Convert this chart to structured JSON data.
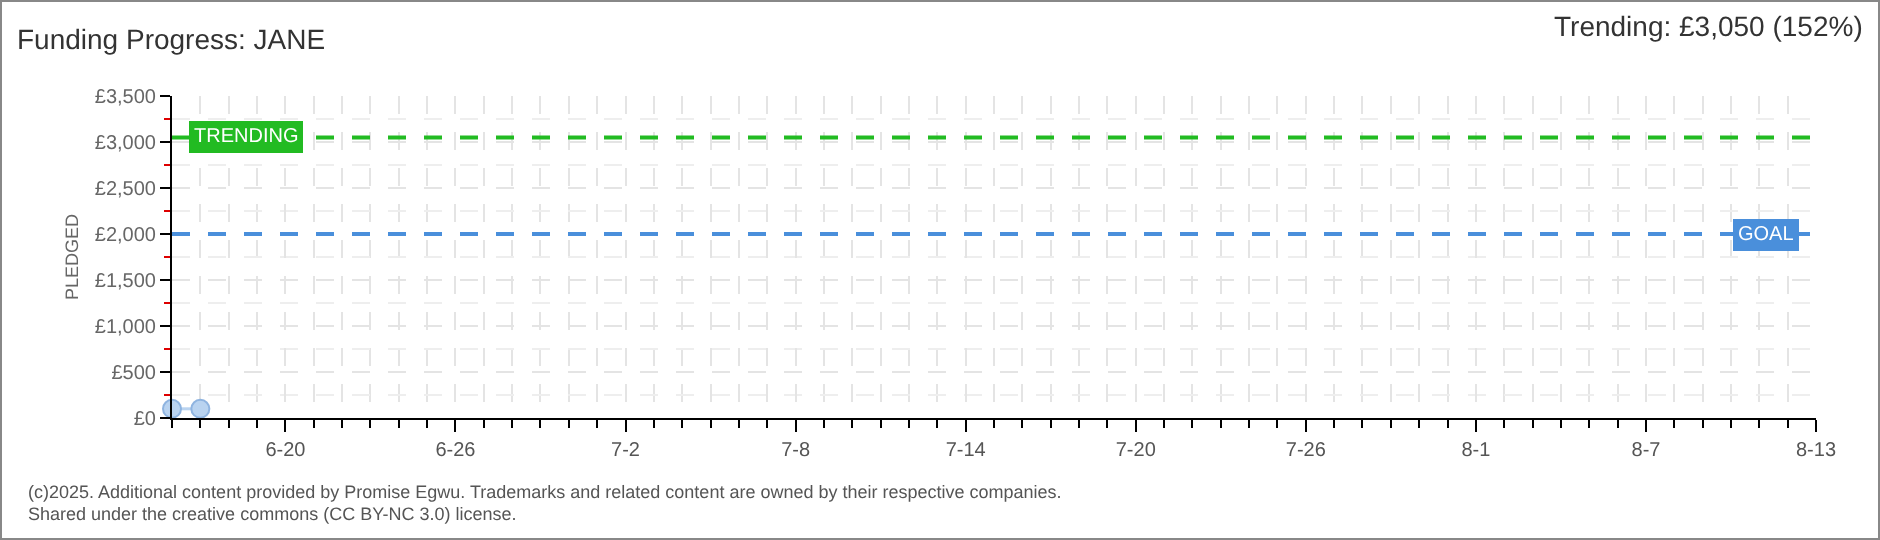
{
  "chart_data": {
    "type": "line",
    "title": "Funding Progress: JANE",
    "subtitle": "Trending: £3,050 (152%)",
    "ylabel": "PLEDGED",
    "x": [
      "--06-16",
      "--06-17"
    ],
    "series": [
      {
        "color": "#b9d3f0",
        "values": [
          100,
          100
        ]
      }
    ],
    "marker": "circle",
    "grid": true,
    "line_style": "solid",
    "xlim": [
      "--06-16",
      "--08-13"
    ],
    "xticks": [
      {
        "value": "--06-20",
        "label": "6-20"
      },
      {
        "value": "--06-26",
        "label": "6-26"
      },
      {
        "value": "--07-02",
        "label": "7-2"
      },
      {
        "value": "--07-08",
        "label": "7-8"
      },
      {
        "value": "--07-14",
        "label": "7-14"
      },
      {
        "value": "--07-20",
        "label": "7-20"
      },
      {
        "value": "--07-26",
        "label": "7-26"
      },
      {
        "value": "--08-01",
        "label": "8-1"
      },
      {
        "value": "--08-07",
        "label": "8-7"
      },
      {
        "value": "--08-13",
        "label": "8-13"
      }
    ],
    "ylim": [
      0,
      3500
    ],
    "yticks": [
      {
        "value": 0,
        "label": "£0"
      },
      {
        "value": 500,
        "label": "£500"
      },
      {
        "value": 1000,
        "label": "£1,000"
      },
      {
        "value": 1500,
        "label": "£1,500"
      },
      {
        "value": 2000,
        "label": "£2,000"
      },
      {
        "value": 2500,
        "label": "£2,500"
      },
      {
        "value": 3000,
        "label": "£3,000"
      },
      {
        "value": 3500,
        "label": "£3,500"
      }
    ],
    "ref_lines": [
      {
        "axis": "y",
        "value": 3050,
        "label": "TRENDING",
        "color": "#22bb22",
        "line_style": "dashed"
      },
      {
        "axis": "y",
        "value": 2000,
        "label": "GOAL",
        "color": "#4a8fdb",
        "line_style": "dashed"
      }
    ],
    "annotations": [
      "(c)2025. Additional content provided by Promise Egwu. Trademarks and related content are owned by their respective companies.",
      "Shared under the creative commons (CC BY-NC 3.0) license."
    ]
  }
}
